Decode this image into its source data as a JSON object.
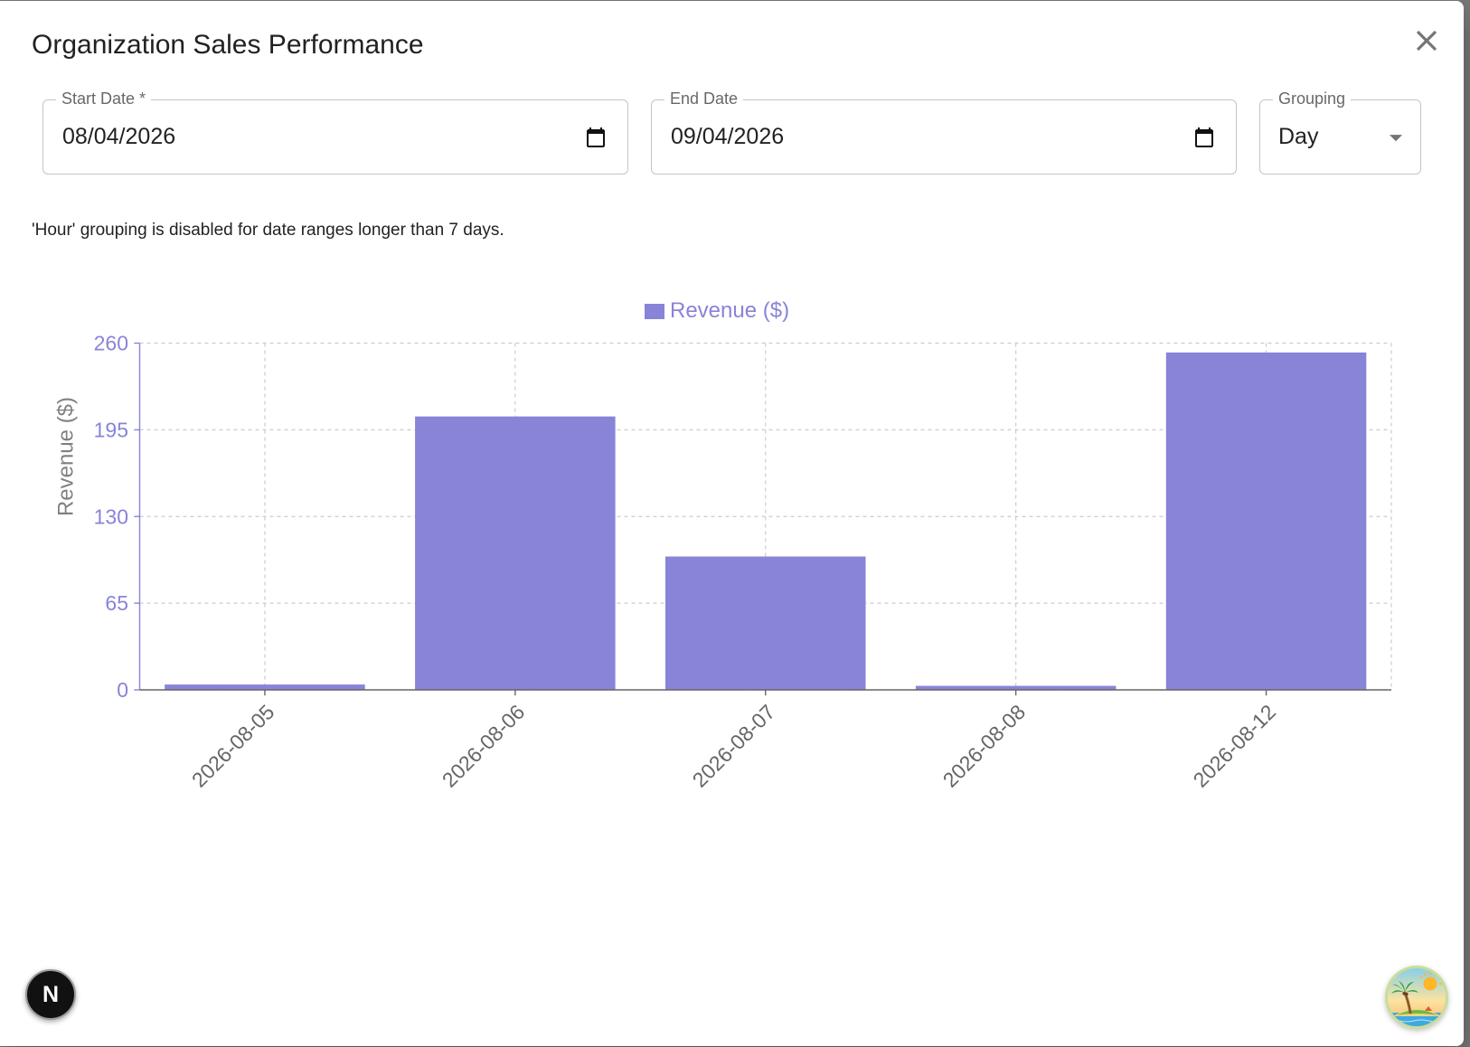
{
  "dialog": {
    "title": "Organization Sales Performance",
    "close_icon": "close-icon"
  },
  "filters": {
    "start_date": {
      "label": "Start Date *",
      "value": "08/04/2026",
      "icon": "calendar-icon"
    },
    "end_date": {
      "label": "End Date",
      "value": "09/04/2026",
      "icon": "calendar-icon"
    },
    "grouping": {
      "label": "Grouping",
      "value": "Day",
      "icon": "arrow-drop-down-icon"
    }
  },
  "helper_text": "'Hour' grouping is disabled for date ranges longer than 7 days.",
  "chart_data": {
    "type": "bar",
    "categories": [
      "2026-08-05",
      "2026-08-06",
      "2026-08-07",
      "2026-08-08",
      "2026-08-12"
    ],
    "series": [
      {
        "name": "Revenue ($)",
        "values": [
          4,
          205,
          100,
          3,
          253
        ]
      }
    ],
    "xlabel": "",
    "ylabel": "Revenue ($)",
    "ylim": [
      0,
      260
    ],
    "yticks": [
      0,
      65,
      130,
      195,
      260
    ],
    "grid": true,
    "legend": "top-center",
    "colors": {
      "bar": "#8884d8",
      "y_axis": "#8884d8",
      "x_axis": "#666666",
      "grid": "#cccccc"
    }
  },
  "floating": {
    "dev_badge_letter": "N",
    "avatar_icon": "island-avatar-icon"
  }
}
